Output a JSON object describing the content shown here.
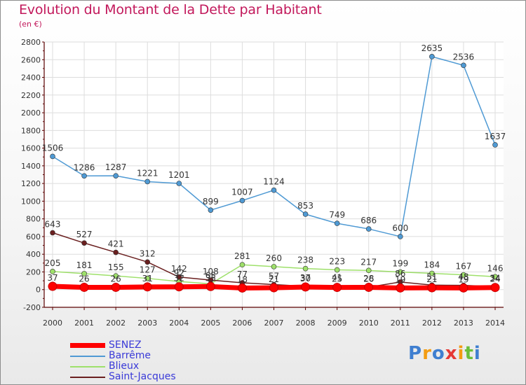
{
  "header": {
    "title": "Evolution du Montant de la Dette par Habitant",
    "unit": "(en €)"
  },
  "logo": {
    "text": "Proxiti"
  },
  "colors": {
    "title": "#c2185b",
    "axis": "#5a0000",
    "grid": "#dddddd",
    "legend_text": "#3a3ad8"
  },
  "chart_data": {
    "type": "line",
    "title": "Evolution du Montant de la Dette par Habitant",
    "ylabel": "(en €)",
    "xlabel": "",
    "ylim": [
      -200,
      2800
    ],
    "yticks": [
      -200,
      0,
      200,
      400,
      600,
      800,
      1000,
      1200,
      1400,
      1600,
      1800,
      2000,
      2200,
      2400,
      2600,
      2800
    ],
    "grid": true,
    "legend_position": "bottom-left",
    "x": [
      "2000",
      "2001",
      "2002",
      "2003",
      "2004",
      "2005",
      "2006",
      "2007",
      "2008",
      "2009",
      "2010",
      "2011",
      "2012",
      "2013",
      "2014"
    ],
    "series": [
      {
        "name": "SENEZ",
        "color": "#ff0000",
        "values": [
          37,
          26,
          26,
          31,
          32,
          35,
          18,
          21,
          30,
          25,
          26,
          19,
          21,
          19,
          24
        ]
      },
      {
        "name": "Barrême",
        "color": "#4f9ad4",
        "values": [
          1506,
          1286,
          1287,
          1221,
          1201,
          899,
          1007,
          1124,
          853,
          749,
          686,
          600,
          2635,
          2536,
          1637
        ]
      },
      {
        "name": "Blieux",
        "color": "#9ee06a",
        "values": [
          205,
          181,
          155,
          127,
          92,
          65,
          281,
          260,
          238,
          223,
          217,
          199,
          184,
          167,
          146
        ]
      },
      {
        "name": "Saint-Jacques",
        "color": "#6a1f1f",
        "values": [
          643,
          527,
          421,
          312,
          142,
          108,
          77,
          57,
          37,
          41,
          28,
          86,
          51,
          48,
          34
        ]
      }
    ],
    "labels": [
      [
        "37",
        "26",
        "26",
        "31",
        "32",
        "35",
        "18",
        "21",
        "30",
        "25",
        "26",
        "19",
        "21",
        "19",
        "24"
      ],
      [
        "1506",
        "1286",
        "1287",
        "1221",
        "1201",
        "899",
        "1007",
        "1124",
        "853",
        "749",
        "686",
        "600",
        "2635",
        "2536",
        "1637"
      ],
      [
        "205",
        "181",
        "155",
        "127",
        "92",
        "65",
        "281",
        "260",
        "238",
        "223",
        "217",
        "199",
        "184",
        "167",
        "146"
      ],
      [
        "643",
        "527",
        "421",
        "312",
        "142",
        "108",
        "77",
        "57",
        "37",
        "41",
        "28",
        "86",
        "51",
        "48",
        "34"
      ]
    ]
  }
}
